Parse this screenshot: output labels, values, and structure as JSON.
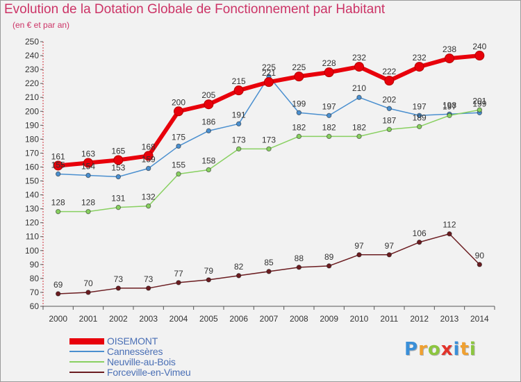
{
  "title": "Evolution de la Dotation Globale de Fonctionnement par Habitant",
  "subtitle": "(en € et par an)",
  "brand": {
    "text": "Proxiti",
    "letters": [
      {
        "ch": "P",
        "color": "#3a8fd8"
      },
      {
        "ch": "r",
        "color": "#f0a030"
      },
      {
        "ch": "o",
        "color": "#8cc63f"
      },
      {
        "ch": "x",
        "color": "#e2332b"
      },
      {
        "ch": "i",
        "color": "#3a8fd8"
      },
      {
        "ch": "t",
        "color": "#f0a030"
      },
      {
        "ch": "i",
        "color": "#8cc63f"
      }
    ]
  },
  "chart_data": {
    "type": "line",
    "x": [
      "2000",
      "2001",
      "2002",
      "2003",
      "2004",
      "2005",
      "2006",
      "2007",
      "2008",
      "2009",
      "2010",
      "2011",
      "2012",
      "2013",
      "2014"
    ],
    "ylim": [
      60,
      250
    ],
    "yticks": [
      60,
      70,
      80,
      90,
      100,
      110,
      120,
      130,
      140,
      150,
      160,
      170,
      180,
      190,
      200,
      210,
      220,
      230,
      240,
      250
    ],
    "grid": false,
    "legend_placement": "bottom-left",
    "series": [
      {
        "name": "OISEMONT",
        "color": "#e8000b",
        "emphasis": true,
        "values": [
          161,
          163,
          165,
          168,
          200,
          205,
          215,
          221,
          225,
          228,
          232,
          222,
          232,
          238,
          240
        ],
        "labels": [
          "161",
          "163",
          "165",
          "168",
          "200",
          "205",
          "215",
          "221",
          "225",
          "228",
          "232",
          "222",
          "232",
          "238",
          "240"
        ]
      },
      {
        "name": "Cannessères",
        "color": "#4a8fcf",
        "emphasis": false,
        "values": [
          155,
          154,
          153,
          159,
          175,
          186,
          191,
          225,
          199,
          197,
          210,
          202,
          197,
          198,
          199
        ],
        "labels": [
          "155",
          "154",
          "153",
          "159",
          "175",
          "186",
          "191",
          "225",
          "199",
          "197",
          "210",
          "202",
          "197",
          "198",
          "199"
        ]
      },
      {
        "name": "Neuville-au-Bois",
        "color": "#88d060",
        "emphasis": false,
        "values": [
          128,
          128,
          131,
          132,
          155,
          158,
          173,
          173,
          182,
          182,
          182,
          187,
          189,
          197,
          201
        ],
        "labels": [
          "128",
          "128",
          "131",
          "132",
          "155",
          "158",
          "173",
          "173",
          "182",
          "182",
          "182",
          "187",
          "189",
          "197",
          "201"
        ]
      },
      {
        "name": "Forceville-en-Vimeu",
        "color": "#6b1c20",
        "emphasis": false,
        "values": [
          69,
          70,
          73,
          73,
          77,
          79,
          82,
          85,
          88,
          89,
          97,
          97,
          106,
          112,
          90
        ],
        "labels": [
          "69",
          "70",
          "73",
          "73",
          "77",
          "79",
          "82",
          "85",
          "88",
          "89",
          "97",
          "97",
          "106",
          "112",
          "90"
        ]
      }
    ]
  }
}
